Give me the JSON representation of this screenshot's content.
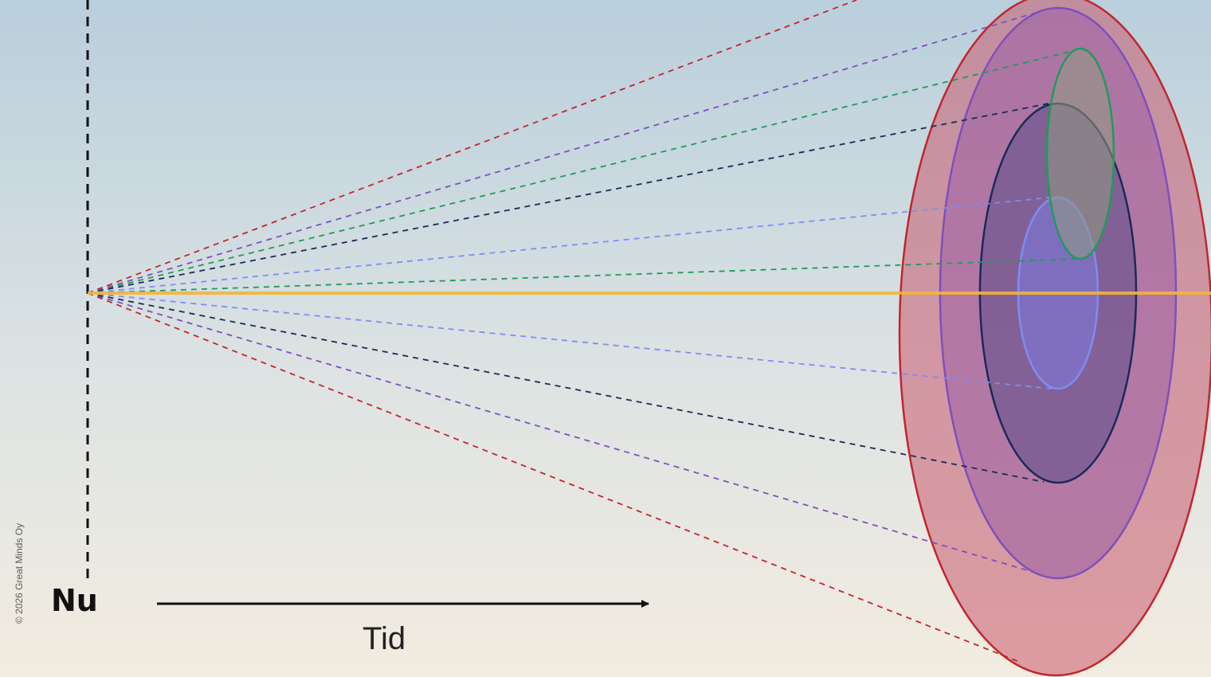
{
  "labels": {
    "now": "Nu",
    "time": "Tid",
    "copyright": "© 2026 Great Minds Oy"
  },
  "colors": {
    "background_top": "#b9cfdc",
    "background_bottom": "#f3ece0",
    "present_line": "#f3b53a",
    "red": "#c0262d",
    "purple": "#7e4fbd",
    "navy": "#1c2a55",
    "blue": "#7f8cf3",
    "green": "#1f9a5a",
    "axis": "#111111"
  },
  "cones": [
    {
      "name": "red-scenario",
      "color": "#c0262d",
      "fill": "#c85a6e"
    },
    {
      "name": "purple-scenario",
      "color": "#7e4fbd",
      "fill": "#9b5fa8"
    },
    {
      "name": "navy-scenario",
      "color": "#1c2a55",
      "fill": "#5b4f8a"
    },
    {
      "name": "blue-scenario",
      "color": "#7f8cf3",
      "fill": "#7c7ce0"
    },
    {
      "name": "green-scenario",
      "color": "#1f9a5a",
      "fill": "#8f9a80"
    }
  ]
}
